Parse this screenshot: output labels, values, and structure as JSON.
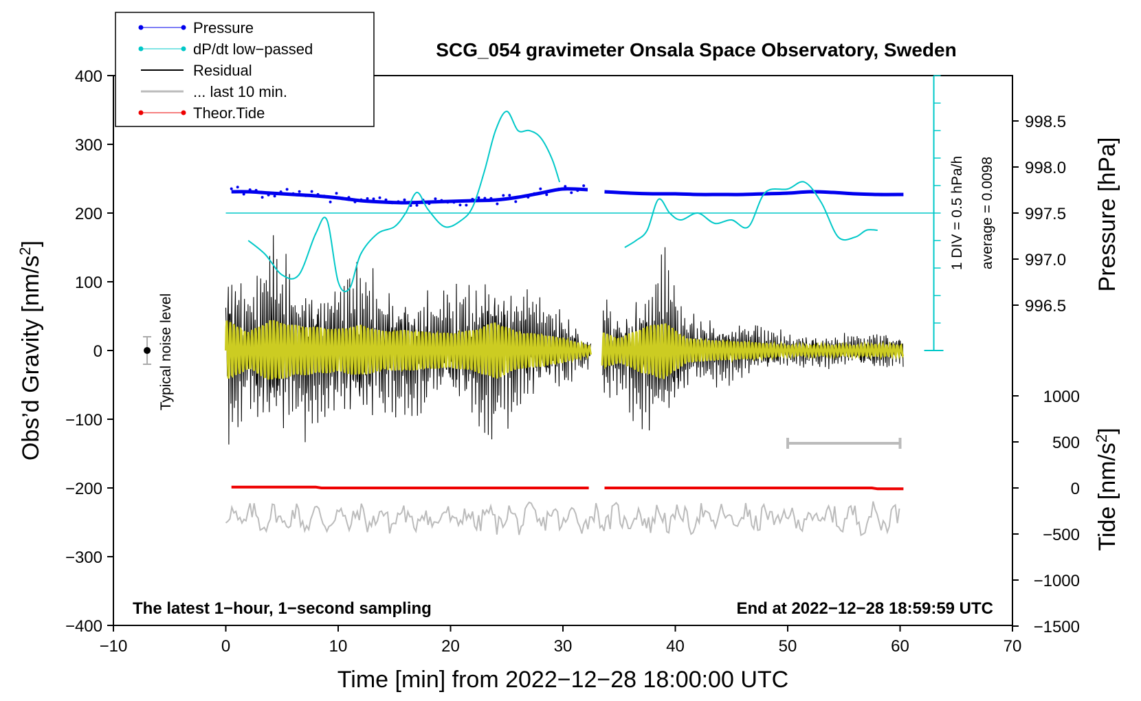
{
  "chart_data": {
    "type": "line",
    "title": "SCG_054 gravimeter Onsala Space Observatory, Sweden",
    "xlabel": "Time [min] from 2022−12−28 18:00:00 UTC",
    "ylabel_left": "Obs’d Gravity [nm/s²]",
    "ylabel_left_main": "Obs’d Gravity [nm/s",
    "ylabel_left_sup": "2",
    "ylabel_left_end": "]",
    "ylabel_right_pressure": "Pressure [hPa]",
    "ylabel_right_tide": "Tide [nm/s²]",
    "ylabel_right_tide_main": "Tide [nm/s",
    "ylabel_right_tide_sup": "2",
    "ylabel_right_tide_end": "]",
    "xlim": [
      -10,
      70
    ],
    "ylim": [
      -400,
      400
    ],
    "x_ticks": [
      "−10",
      "0",
      "10",
      "20",
      "30",
      "40",
      "50",
      "60",
      "70"
    ],
    "x_tick_values": [
      -10,
      0,
      10,
      20,
      30,
      40,
      50,
      60,
      70
    ],
    "y_ticks": [
      "400",
      "300",
      "200",
      "100",
      "0",
      "−100",
      "−200",
      "−300",
      "−400"
    ],
    "y_tick_values": [
      400,
      300,
      200,
      100,
      0,
      -100,
      -200,
      -300,
      -400
    ],
    "pressure_axis": {
      "ticks": [
        "998.5",
        "998.0",
        "997.5",
        "997.0",
        "996.5"
      ],
      "tick_values": [
        998.5,
        998.0,
        997.5,
        997.0,
        996.5
      ],
      "gravity_equiv_at_997_5": 200,
      "gravity_per_hpa": 134
    },
    "tide_axis": {
      "ticks": [
        "1000",
        "500",
        "0",
        "−500",
        "−1000",
        "−1500"
      ],
      "tick_values": [
        1000,
        500,
        0,
        -500,
        -1000,
        -1500
      ],
      "gravity_at_tide_zero": -200,
      "gravity_per_tide_unit": 0.134
    },
    "legend": [
      {
        "label": "Pressure",
        "color": "#0000ee",
        "marker": true
      },
      {
        "label": "dP/dt low−passed",
        "color": "#00c8c8",
        "marker": true
      },
      {
        "label": "Residual",
        "color": "#000000",
        "marker": false
      },
      {
        "label": "... last 10 min.",
        "color": "#bbbbbb",
        "marker": false
      },
      {
        "label": "Theor.Tide",
        "color": "#ee0000",
        "marker": true
      }
    ],
    "dpdt_scale": {
      "label": "1 DIV = 0.5 hPa/h",
      "average_label": "average = 0.0098",
      "x_position": 63,
      "baseline_gravity": 200,
      "divisions": 10
    },
    "noise_bar": {
      "label": "Typical noise level",
      "x": -7,
      "y": 0,
      "half_range": 20
    },
    "last10_bar": {
      "x_start": 50,
      "x_end": 60,
      "y": -135
    },
    "annotation_left": "The latest 1−hour, 1−second sampling",
    "annotation_right": "End at 2022−12−28 18:59:59 UTC",
    "gap": [
      32.5,
      33.5
    ],
    "pressure_series": {
      "x": [
        0.5,
        2,
        4,
        6,
        8,
        10,
        12,
        14,
        16,
        18,
        20,
        22,
        24,
        26,
        28,
        30,
        32.2,
        33.7,
        36,
        38,
        40,
        42,
        44,
        46,
        48,
        50,
        52,
        54,
        56,
        58,
        60.3
      ],
      "y_gravity": [
        231,
        231,
        229,
        227,
        225,
        222,
        218,
        216,
        215,
        216,
        217,
        218,
        219,
        223,
        229,
        235,
        234,
        231,
        229,
        228,
        228,
        227,
        227,
        227,
        228,
        229,
        231,
        230,
        228,
        227,
        227
      ]
    },
    "dpdt_series": {
      "x": [
        2,
        3.5,
        5,
        6.5,
        8,
        9,
        10,
        11,
        12,
        13.5,
        15,
        16,
        17,
        18,
        19.5,
        21,
        22,
        23,
        24,
        25,
        26,
        27,
        28,
        29,
        29.7,
        35.5,
        36.5,
        37.5,
        38.5,
        39.5,
        40.5,
        42,
        43.5,
        45,
        46.5,
        48,
        50,
        51.5,
        53,
        54.5,
        56,
        57,
        58
      ],
      "y_gravity": [
        160,
        140,
        110,
        110,
        170,
        190,
        100,
        90,
        140,
        170,
        180,
        200,
        230,
        205,
        180,
        190,
        210,
        260,
        320,
        348,
        320,
        320,
        310,
        280,
        245,
        150,
        160,
        175,
        220,
        200,
        190,
        200,
        185,
        190,
        180,
        230,
        235,
        245,
        215,
        165,
        165,
        175,
        175
      ]
    },
    "residual_series": {
      "segment1": {
        "x_start": 0,
        "x_end": 32.5,
        "envelope": [
          [
            0,
            150
          ],
          [
            2,
            90
          ],
          [
            4,
            150
          ],
          [
            6,
            125
          ],
          [
            8,
            115
          ],
          [
            10,
            105
          ],
          [
            12,
            125
          ],
          [
            14,
            95
          ],
          [
            16,
            100
          ],
          [
            18,
            90
          ],
          [
            20,
            85
          ],
          [
            22,
            100
          ],
          [
            24,
            140
          ],
          [
            26,
            90
          ],
          [
            28,
            80
          ],
          [
            30,
            60
          ],
          [
            32.5,
            20
          ]
        ]
      },
      "segment2": {
        "x_start": 33.5,
        "x_end": 60.3,
        "envelope": [
          [
            33.5,
            90
          ],
          [
            35,
            60
          ],
          [
            37,
            110
          ],
          [
            39,
            140
          ],
          [
            41,
            60
          ],
          [
            43,
            50
          ],
          [
            45,
            45
          ],
          [
            47,
            40
          ],
          [
            50,
            25
          ],
          [
            53,
            25
          ],
          [
            56,
            25
          ],
          [
            58,
            30
          ],
          [
            60.3,
            25
          ]
        ]
      }
    },
    "tide_series": {
      "x": [
        0.5,
        8,
        8.5,
        32.3,
        33.7,
        57.5,
        58,
        60.3
      ],
      "y_tide": [
        10,
        10,
        0,
        0,
        0,
        0,
        -10,
        -10
      ]
    },
    "last10_series": {
      "x_start": 0,
      "x_end": 60,
      "y_tide_center": -330,
      "y_tide_amplitude": 200
    }
  }
}
